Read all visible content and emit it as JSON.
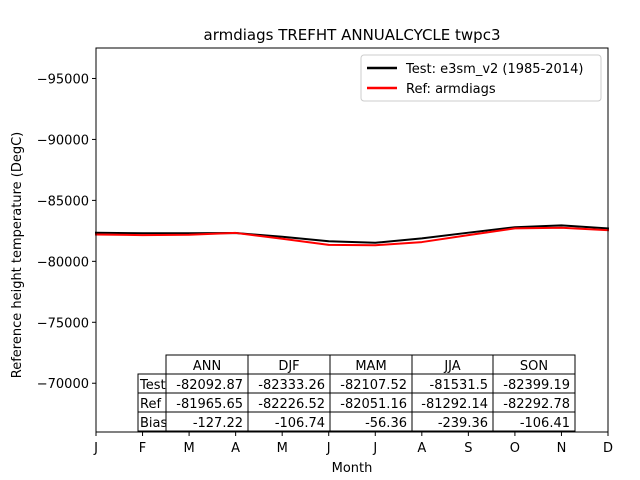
{
  "chart_data": {
    "type": "line",
    "title": "armdiags TREFHT ANNUALCYCLE twpc3",
    "xlabel": "Month",
    "ylabel": "Reference height temperature (DegC)",
    "x": [
      "J",
      "F",
      "M",
      "A",
      "M",
      "J",
      "J",
      "A",
      "S",
      "O",
      "N",
      "D"
    ],
    "ylim": [
      -66000,
      -97500
    ],
    "y_inverted": true,
    "yticks": [
      -95000,
      -90000,
      -85000,
      -80000,
      -75000,
      -70000
    ],
    "ytick_labels": [
      "−95000",
      "−90000",
      "−85000",
      "−80000",
      "−75000",
      "−70000"
    ],
    "legend_position": "top-right",
    "series": [
      {
        "name": "Test: e3sm_v2 (1985-2014)",
        "color": "#000000",
        "values": [
          -82350,
          -82300,
          -82300,
          -82320,
          -82020,
          -81650,
          -81520,
          -81880,
          -82350,
          -82800,
          -82950,
          -82700
        ]
      },
      {
        "name": "Ref: armdiags",
        "color": "#ff0000",
        "values": [
          -82200,
          -82150,
          -82180,
          -82330,
          -81850,
          -81350,
          -81320,
          -81580,
          -82150,
          -82700,
          -82750,
          -82550
        ]
      }
    ],
    "table": {
      "col_labels": [
        "ANN",
        "DJF",
        "MAM",
        "JJA",
        "SON"
      ],
      "rows": [
        {
          "label": "Test",
          "values": [
            "-82092.87",
            "-82333.26",
            "-82107.52",
            "-81531.5",
            "-82399.19"
          ]
        },
        {
          "label": "Ref",
          "values": [
            "-81965.65",
            "-82226.52",
            "-82051.16",
            "-81292.14",
            "-82292.78"
          ]
        },
        {
          "label": "Bias",
          "values": [
            "-127.22",
            "-106.74",
            "-56.36",
            "-239.36",
            "-106.41"
          ]
        }
      ]
    }
  }
}
